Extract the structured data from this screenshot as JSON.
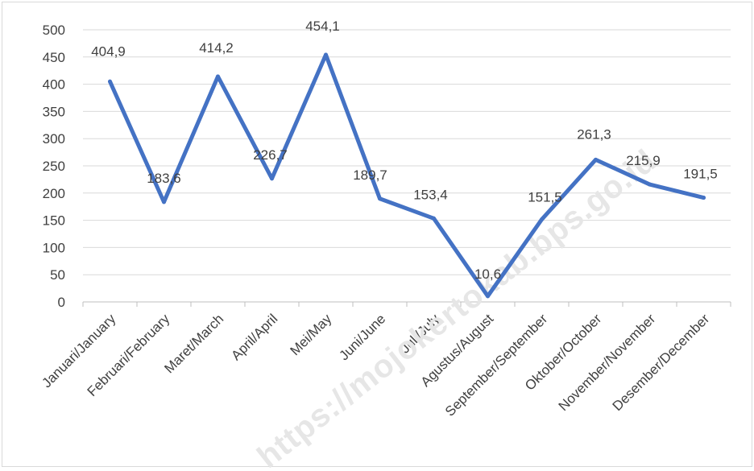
{
  "chart_data": {
    "type": "line",
    "title": "",
    "xlabel": "",
    "ylabel": "",
    "ylim": [
      0,
      500
    ],
    "yticks": [
      0,
      50,
      100,
      150,
      200,
      250,
      300,
      350,
      400,
      450,
      500
    ],
    "grid": true,
    "legend": "none",
    "categories": [
      "Januari/January",
      "Februari/February",
      "Maret/March",
      "April/April",
      "Mei/May",
      "Juni/June",
      "Juli/July",
      "Agustus/August",
      "September/September",
      "Oktober/October",
      "November/November",
      "Desember/December"
    ],
    "series": [
      {
        "values": [
          404.9,
          183.6,
          414.2,
          226.7,
          454.1,
          189.7,
          153.4,
          10.6,
          151.5,
          261.3,
          215.9,
          191.5
        ],
        "labels": [
          "404,9",
          "183,6",
          "414,2",
          "226,7",
          "454,1",
          "189,7",
          "153,4",
          "10,6",
          "151,5",
          "261,3",
          "215,9",
          "191,5"
        ],
        "color": "#4472c4"
      }
    ],
    "watermark": "https://mojokertokab.bps.go.id"
  }
}
